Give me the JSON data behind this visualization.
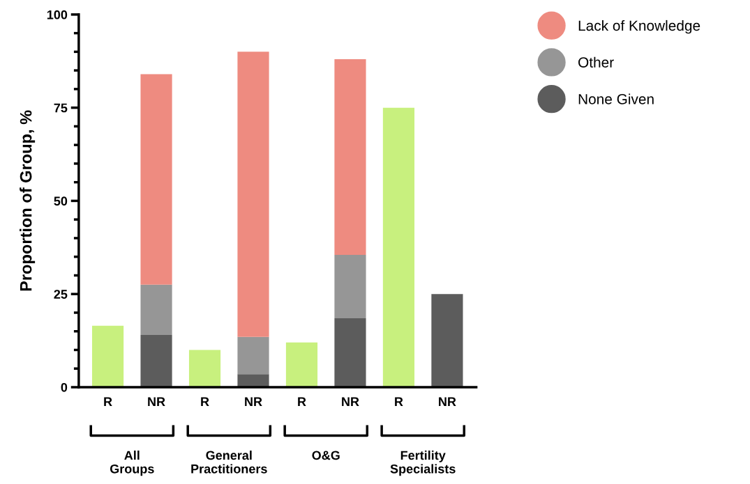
{
  "chart_data": {
    "type": "bar",
    "stacked": true,
    "categories": [
      "R",
      "NR",
      "R",
      "NR",
      "R",
      "NR",
      "R",
      "NR"
    ],
    "series": [
      {
        "color": "#c8f07e",
        "values": [
          16.5,
          null,
          10,
          null,
          12,
          null,
          75,
          null
        ]
      },
      {
        "name": "None Given",
        "color": "#5c5c5c",
        "values": [
          null,
          14,
          null,
          3.5,
          null,
          18.5,
          null,
          25
        ]
      },
      {
        "name": "Other",
        "color": "#969696",
        "values": [
          null,
          13.5,
          null,
          10,
          null,
          17,
          null,
          null
        ]
      },
      {
        "name": "Lack of Knowledge",
        "color": "#ee8b80",
        "values": [
          null,
          56.5,
          null,
          76.5,
          null,
          52.5,
          null,
          null
        ]
      }
    ],
    "ylabel": "Proportion of Group, %",
    "ylim": [
      0,
      100
    ],
    "yticks": [
      0,
      25,
      50,
      75,
      100
    ],
    "annotations": [
      "All\nGroups",
      "General\nPractitioners",
      "O&G",
      "Fertility\nSpecialists"
    ],
    "grid": false,
    "legend": "top right",
    "marker": "circle"
  }
}
